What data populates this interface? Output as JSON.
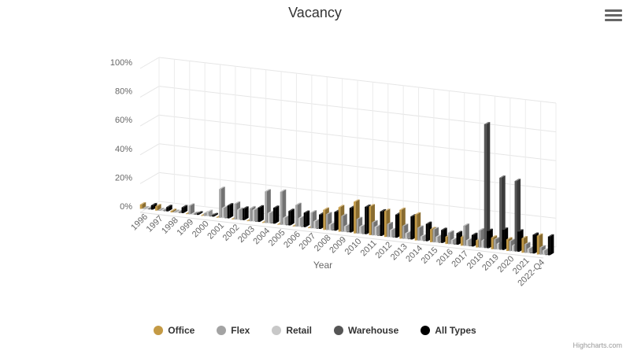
{
  "menu": {
    "icon": "hamburger-menu-icon"
  },
  "credits": "Highcharts.com",
  "chart_data": {
    "type": "bar",
    "title": "Vacancy",
    "xlabel": "Year",
    "ylabel": "",
    "ylim": [
      0,
      100
    ],
    "y_tick_labels": [
      "0%",
      "20%",
      "40%",
      "60%",
      "80%",
      "100%"
    ],
    "grid": true,
    "legend_position": "bottom",
    "categories": [
      "1996",
      "1997",
      "1998",
      "1999",
      "2000",
      "2001",
      "2002",
      "2003",
      "2004",
      "2005",
      "2006",
      "2007",
      "2008",
      "2009",
      "2010",
      "2011",
      "2012",
      "2013",
      "2014",
      "2015",
      "2016",
      "2017",
      "2018",
      "2019",
      "2020",
      "2021",
      "2022-Q4"
    ],
    "series": [
      {
        "name": "Office",
        "color": "#c49a45",
        "values": [
          3,
          3,
          1,
          0,
          0,
          0,
          0,
          0,
          0,
          0,
          0,
          0,
          14,
          17,
          22,
          20,
          18,
          20,
          18,
          9,
          5,
          6,
          5,
          8,
          8,
          10,
          13
        ]
      },
      {
        "name": "Flex",
        "color": "#a3a3a3",
        "values": [
          0,
          0,
          0,
          6,
          2,
          20,
          11,
          9,
          22,
          23,
          15,
          11,
          11,
          11,
          10,
          9,
          9,
          9,
          9,
          9,
          8,
          14,
          12,
          7,
          7,
          6,
          5
        ]
      },
      {
        "name": "Retail",
        "color": "#c8c8c8",
        "values": [
          0,
          0,
          0,
          0,
          3,
          7,
          7,
          8,
          7,
          5,
          6,
          5,
          4,
          4,
          5,
          6,
          5,
          4,
          3,
          4,
          3,
          4,
          5,
          4,
          4,
          3,
          3
        ]
      },
      {
        "name": "Warehouse",
        "color": "#555555",
        "values": [
          0,
          0,
          0,
          0,
          0,
          0,
          0,
          0,
          0,
          0,
          0,
          0,
          0,
          0,
          0,
          0,
          0,
          0,
          0,
          0,
          0,
          0,
          86,
          50,
          49,
          0,
          0
        ]
      },
      {
        "name": "All Types",
        "color": "#000000",
        "values": [
          3,
          3,
          4,
          1,
          1,
          9,
          8,
          10,
          11,
          10,
          10,
          10,
          13,
          17,
          19,
          17,
          16,
          16,
          12,
          9,
          8,
          8,
          12,
          14,
          14,
          13,
          13
        ]
      }
    ]
  }
}
